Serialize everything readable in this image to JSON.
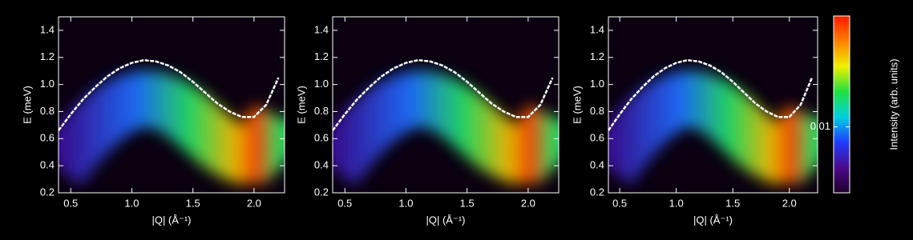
{
  "chart_data": [
    {
      "type": "line",
      "color": "#ffffff",
      "xlabel": "|Q| (Å⁻¹)",
      "ylabel": "E (meV)",
      "x": [
        0.4,
        0.5,
        0.6,
        0.7,
        0.8,
        0.9,
        1.0,
        1.1,
        1.2,
        1.3,
        1.4,
        1.5,
        1.6,
        1.7,
        1.8,
        1.9,
        2.0,
        2.1,
        2.2
      ],
      "values": [
        0.66,
        0.78,
        0.89,
        0.98,
        1.06,
        1.12,
        1.16,
        1.18,
        1.17,
        1.14,
        1.09,
        1.02,
        0.94,
        0.86,
        0.8,
        0.76,
        0.76,
        0.85,
        1.05
      ],
      "xlim": [
        0.4,
        2.25
      ],
      "ylim": [
        0.2,
        1.5
      ],
      "xticks": [
        0.5,
        {
          "value": 1,
          "label": "1.0"
        },
        1.5,
        {
          "value": 2,
          "label": "2.0"
        }
      ],
      "yticks": [
        0.2,
        0.4,
        0.6,
        0.8,
        {
          "value": 1,
          "label": "1.0"
        },
        {
          "value": 1.2,
          "label": "1.2"
        },
        1.4
      ]
    },
    {
      "type": "line",
      "color": "#ffffff",
      "xlabel": "|Q| (Å⁻¹)",
      "ylabel": "E (meV)",
      "x": [
        0.4,
        0.5,
        0.6,
        0.7,
        0.8,
        0.9,
        1.0,
        1.1,
        1.2,
        1.3,
        1.4,
        1.5,
        1.6,
        1.7,
        1.8,
        1.9,
        2.0,
        2.1,
        2.2
      ],
      "values": [
        0.66,
        0.78,
        0.89,
        0.98,
        1.06,
        1.12,
        1.16,
        1.18,
        1.17,
        1.14,
        1.09,
        1.02,
        0.94,
        0.86,
        0.8,
        0.76,
        0.76,
        0.85,
        1.05
      ],
      "xlim": [
        0.4,
        2.25
      ],
      "ylim": [
        0.2,
        1.5
      ],
      "xticks": [
        0.5,
        {
          "value": 1,
          "label": "1.0"
        },
        1.5,
        {
          "value": 2,
          "label": "2.0"
        }
      ],
      "yticks": [
        0.2,
        0.4,
        0.6,
        0.8,
        {
          "value": 1,
          "label": "1.0"
        },
        {
          "value": 1.2,
          "label": "1.2"
        },
        1.4
      ]
    },
    {
      "type": "line",
      "color": "#ffffff",
      "xlabel": "|Q| (Å⁻¹)",
      "ylabel": "E (meV)",
      "x": [
        0.4,
        0.5,
        0.6,
        0.7,
        0.8,
        0.9,
        1.0,
        1.1,
        1.2,
        1.3,
        1.4,
        1.5,
        1.6,
        1.7,
        1.8,
        1.9,
        2.0,
        2.1,
        2.2
      ],
      "values": [
        0.66,
        0.78,
        0.89,
        0.98,
        1.06,
        1.12,
        1.16,
        1.18,
        1.17,
        1.14,
        1.09,
        1.02,
        0.94,
        0.86,
        0.8,
        0.76,
        0.76,
        0.85,
        1.05
      ],
      "xlim": [
        0.4,
        2.25
      ],
      "ylim": [
        0.2,
        1.5
      ],
      "xticks": [
        0.5,
        {
          "value": 1,
          "label": "1.0"
        },
        1.5,
        {
          "value": 2,
          "label": "2.0"
        }
      ],
      "yticks": [
        0.2,
        0.4,
        0.6,
        0.8,
        {
          "value": 1,
          "label": "1.0"
        },
        {
          "value": 1.2,
          "label": "1.2"
        },
        1.4
      ]
    }
  ],
  "colorbar": {
    "label": "Intensity (arb. units)",
    "log": true,
    "lim": [
      0.002,
      0.15
    ],
    "ticks": [
      0.01
    ],
    "colors": [
      "#20002a",
      "#4b0a8c",
      "#1f3cff",
      "#00d0e0",
      "#20e040",
      "#f0f000",
      "#ff8000",
      "#ff1a00"
    ]
  }
}
